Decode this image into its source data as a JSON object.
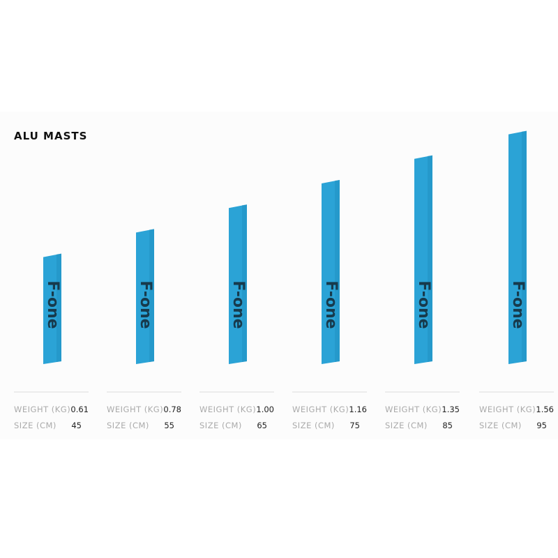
{
  "title": "ALU MASTS",
  "brand": "F-one",
  "weight_label": "WEIGHT (KG)",
  "size_label": "SIZE (CM)",
  "items": [
    {
      "weight": "0.61",
      "size": 45
    },
    {
      "weight": "0.78",
      "size": 55
    },
    {
      "weight": "1.00",
      "size": 65
    },
    {
      "weight": "1.16",
      "size": 75
    },
    {
      "weight": "1.35",
      "size": 85
    },
    {
      "weight": "1.56",
      "size": 95
    }
  ]
}
